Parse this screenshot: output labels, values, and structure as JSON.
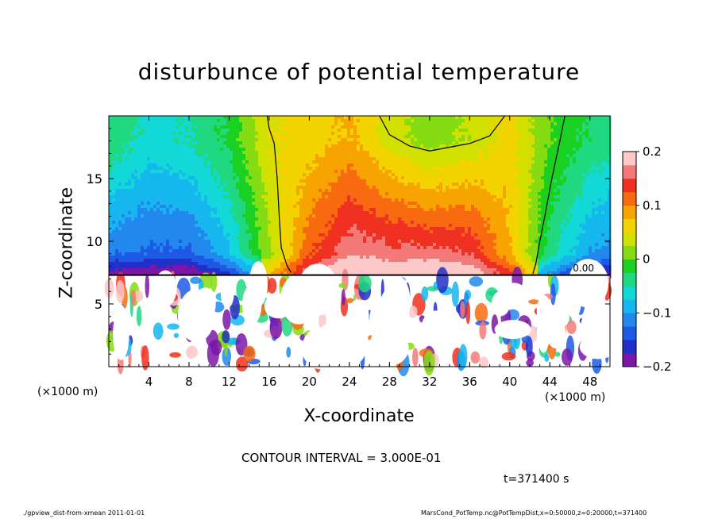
{
  "chart_data": {
    "type": "heatmap",
    "title": "disturbunce of potential temperature",
    "xlabel": "X-coordinate",
    "ylabel": "Z-coordinate",
    "x_unit_label": "(×1000 m)",
    "x_ticks": [
      4,
      8,
      12,
      16,
      20,
      24,
      28,
      32,
      36,
      40,
      44,
      48
    ],
    "y_ticks": [
      5,
      10,
      15
    ],
    "xlim": [
      0,
      50
    ],
    "ylim": [
      0,
      20
    ],
    "colorbar": {
      "ticks": [
        "0.2",
        "0.1",
        "0",
        "−0.1",
        "−0.2"
      ],
      "tick_values": [
        0.2,
        0.1,
        0,
        -0.1,
        -0.2
      ],
      "range": [
        -0.2,
        0.2
      ]
    },
    "contour_label": "0.00",
    "upper_field": {
      "description_values": "value at (x,z) in thousands of meters",
      "x": [
        0,
        4,
        8,
        12,
        16,
        20,
        24,
        28,
        32,
        36,
        40,
        44,
        48,
        50
      ],
      "values_z10": [
        -0.12,
        -0.13,
        -0.13,
        -0.08,
        0.02,
        0.12,
        0.17,
        0.16,
        0.16,
        0.15,
        0.08,
        -0.04,
        -0.1,
        -0.11
      ],
      "values_z18": [
        -0.03,
        -0.06,
        -0.05,
        -0.02,
        0.05,
        0.06,
        0.08,
        0.04,
        0.01,
        0.03,
        0.06,
        0.0,
        -0.03,
        -0.04
      ]
    }
  },
  "contour_interval_text": "CONTOUR INTERVAL = 3.000E-01",
  "time_text": "t=371400 s",
  "footer_left": "./gpview_dist-from-xmean  2011-01-01",
  "footer_right": "MarsCond_PotTemp.nc@PotTempDist,x=0:50000,z=0:20000,t=371400",
  "colors": {
    "colorbar": [
      "#7b16a8",
      "#2030c8",
      "#1c5ae6",
      "#2288ee",
      "#16b6ee",
      "#12d8d8",
      "#20d880",
      "#1ad020",
      "#86dc12",
      "#d2e000",
      "#f4d400",
      "#f8a400",
      "#f86a10",
      "#f03020",
      "#f47a7a",
      "#fcc8c8"
    ]
  }
}
